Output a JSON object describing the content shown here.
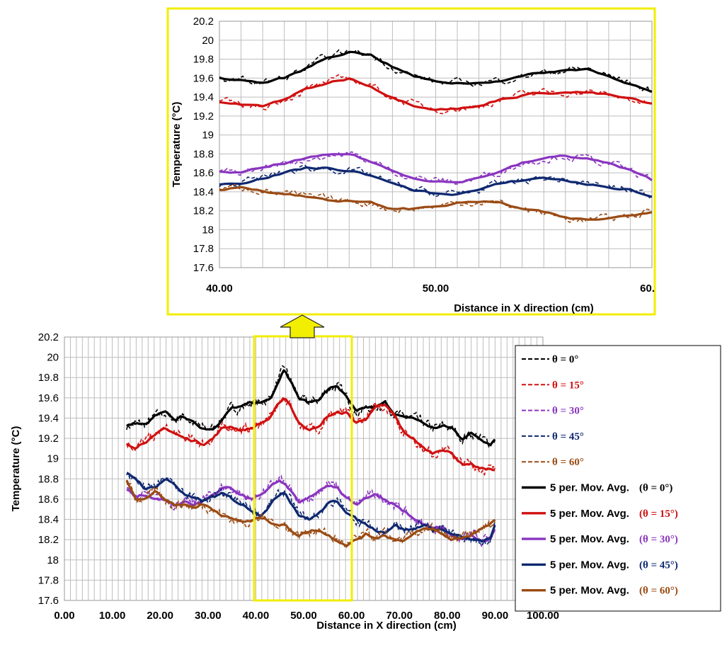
{
  "chart_data": [
    {
      "id": "main",
      "type": "line",
      "xlabel": "Distance in X direction (cm)",
      "ylabel": "Temperature (°C)",
      "xlim": [
        0,
        100
      ],
      "ylim": [
        17.6,
        20.2
      ],
      "xticks": [
        "0.00",
        "10.00",
        "20.00",
        "30.00",
        "40.00",
        "50.00",
        "60.00",
        "70.00",
        "80.00",
        "90.00",
        "100.00"
      ],
      "yticks": [
        "17.6",
        "17.8",
        "18",
        "18.2",
        "18.4",
        "18.6",
        "18.8",
        "19",
        "19.2",
        "19.4",
        "19.6",
        "19.8",
        "20",
        "20.2"
      ],
      "grid": true,
      "legend_position": "right",
      "legend": [
        {
          "name": "θ = 0°",
          "style": "dashed",
          "color": "#000000"
        },
        {
          "name": "θ = 15°",
          "style": "dashed",
          "color": "#d01010"
        },
        {
          "name": "θ = 30°",
          "style": "dashed",
          "color": "#8a35c0"
        },
        {
          "name": "θ = 45°",
          "style": "dashed",
          "color": "#0f2870"
        },
        {
          "name": "θ = 60°",
          "style": "dashed",
          "color": "#9a4b14"
        },
        {
          "name": "5 per. Mov. Avg.",
          "suffix": "(θ = 0°)",
          "style": "solid",
          "color": "#000000"
        },
        {
          "name": "5 per. Mov. Avg.",
          "suffix": "(θ = 15°)",
          "style": "solid",
          "color": "#d01010"
        },
        {
          "name": "5 per. Mov. Avg.",
          "suffix": "(θ = 30°)",
          "style": "solid",
          "color": "#8a35c0"
        },
        {
          "name": "5 per. Mov. Avg.",
          "suffix": "(θ = 45°)",
          "style": "solid",
          "color": "#0f2870"
        },
        {
          "name": "5 per. Mov. Avg.",
          "suffix": "(θ = 60°)",
          "style": "solid",
          "color": "#9a4b14"
        }
      ],
      "series": [
        {
          "angle": 0,
          "color": "#000000",
          "x": [
            13,
            15,
            17,
            19,
            21,
            23,
            25,
            27,
            29,
            31,
            33,
            35,
            37,
            39,
            41,
            43,
            45,
            46,
            47,
            49,
            51,
            53,
            55,
            57,
            59,
            61,
            63,
            65,
            67,
            69,
            71,
            73,
            75,
            77,
            79,
            81,
            83,
            85,
            87,
            89,
            90
          ],
          "y": [
            19.32,
            19.35,
            19.33,
            19.42,
            19.45,
            19.38,
            19.42,
            19.35,
            19.3,
            19.3,
            19.4,
            19.5,
            19.5,
            19.55,
            19.55,
            19.6,
            19.8,
            19.9,
            19.8,
            19.6,
            19.55,
            19.58,
            19.68,
            19.72,
            19.6,
            19.45,
            19.5,
            19.5,
            19.55,
            19.45,
            19.4,
            19.4,
            19.35,
            19.3,
            19.32,
            19.3,
            19.2,
            19.25,
            19.2,
            19.15,
            19.2
          ]
        },
        {
          "angle": 15,
          "color": "#d01010",
          "x": [
            13,
            15,
            17,
            19,
            21,
            23,
            25,
            27,
            29,
            31,
            33,
            35,
            37,
            39,
            41,
            43,
            45,
            46,
            47,
            49,
            51,
            53,
            55,
            57,
            59,
            61,
            63,
            65,
            67,
            69,
            71,
            73,
            75,
            77,
            79,
            81,
            83,
            85,
            87,
            89,
            90
          ],
          "y": [
            19.15,
            19.12,
            19.18,
            19.22,
            19.3,
            19.25,
            19.2,
            19.18,
            19.15,
            19.2,
            19.3,
            19.32,
            19.28,
            19.3,
            19.35,
            19.4,
            19.55,
            19.6,
            19.55,
            19.35,
            19.3,
            19.3,
            19.42,
            19.45,
            19.45,
            19.35,
            19.4,
            19.5,
            19.52,
            19.42,
            19.25,
            19.2,
            19.1,
            19.05,
            19.1,
            19.05,
            18.95,
            18.95,
            18.9,
            18.9,
            18.88
          ]
        },
        {
          "angle": 30,
          "color": "#8a35c0",
          "x": [
            13,
            15,
            17,
            19,
            21,
            23,
            25,
            27,
            29,
            31,
            33,
            35,
            37,
            39,
            41,
            43,
            45,
            46,
            47,
            49,
            51,
            53,
            55,
            57,
            59,
            61,
            63,
            65,
            67,
            69,
            71,
            73,
            75,
            77,
            79,
            81,
            83,
            85,
            87,
            89,
            90
          ],
          "y": [
            18.7,
            18.62,
            18.65,
            18.6,
            18.6,
            18.55,
            18.58,
            18.55,
            18.6,
            18.65,
            18.72,
            18.7,
            18.65,
            18.6,
            18.65,
            18.72,
            18.8,
            18.75,
            18.7,
            18.55,
            18.6,
            18.68,
            18.75,
            18.72,
            18.6,
            18.55,
            18.62,
            18.65,
            18.6,
            18.55,
            18.48,
            18.4,
            18.35,
            18.3,
            18.32,
            18.22,
            18.2,
            18.25,
            18.2,
            18.2,
            18.3
          ]
        },
        {
          "angle": 45,
          "color": "#0f2870",
          "x": [
            13,
            15,
            17,
            19,
            21,
            23,
            25,
            27,
            29,
            31,
            33,
            35,
            37,
            39,
            41,
            43,
            45,
            46,
            47,
            49,
            51,
            53,
            55,
            57,
            59,
            61,
            63,
            65,
            67,
            69,
            71,
            73,
            75,
            77,
            79,
            81,
            83,
            85,
            87,
            89,
            90
          ],
          "y": [
            18.85,
            18.8,
            18.7,
            18.72,
            18.8,
            18.75,
            18.65,
            18.6,
            18.58,
            18.62,
            18.65,
            18.6,
            18.55,
            18.5,
            18.45,
            18.55,
            18.65,
            18.68,
            18.6,
            18.45,
            18.4,
            18.45,
            18.55,
            18.58,
            18.48,
            18.4,
            18.35,
            18.3,
            18.28,
            18.35,
            18.3,
            18.3,
            18.35,
            18.3,
            18.3,
            18.25,
            18.22,
            18.2,
            18.18,
            18.2,
            18.35
          ]
        },
        {
          "angle": 60,
          "color": "#9a4b14",
          "x": [
            13,
            15,
            17,
            19,
            21,
            23,
            25,
            27,
            29,
            31,
            33,
            35,
            37,
            39,
            41,
            43,
            45,
            46,
            47,
            49,
            51,
            53,
            55,
            57,
            59,
            61,
            63,
            65,
            67,
            69,
            71,
            73,
            75,
            77,
            79,
            81,
            83,
            85,
            87,
            89,
            90
          ],
          "y": [
            18.78,
            18.6,
            18.62,
            18.68,
            18.6,
            18.55,
            18.55,
            18.52,
            18.55,
            18.5,
            18.45,
            18.4,
            18.38,
            18.38,
            18.42,
            18.38,
            18.35,
            18.35,
            18.3,
            18.25,
            18.28,
            18.3,
            18.25,
            18.2,
            18.15,
            18.2,
            18.25,
            18.22,
            18.25,
            18.2,
            18.2,
            18.25,
            18.3,
            18.3,
            18.25,
            18.2,
            18.22,
            18.25,
            18.3,
            18.35,
            18.38
          ]
        }
      ]
    },
    {
      "id": "zoom",
      "type": "line",
      "xlabel": "Distance in X direction (cm)",
      "ylabel": "Temperature (°C)",
      "xlim": [
        40,
        60
      ],
      "ylim": [
        17.6,
        20.2
      ],
      "xticks": [
        "40.00",
        "50.00",
        "60."
      ],
      "yticks": [
        "17.6",
        "17.8",
        "18",
        "18.2",
        "18.4",
        "18.6",
        "18.8",
        "19",
        "19.2",
        "19.4",
        "19.6",
        "19.8",
        "20",
        "20.2"
      ],
      "grid": true,
      "series": [
        {
          "angle": 0,
          "color": "#000000",
          "x": [
            40,
            41,
            42,
            43,
            44,
            45,
            46,
            47,
            48,
            49,
            50,
            51,
            52,
            53,
            54,
            55,
            56,
            57,
            58,
            59,
            60
          ],
          "y": [
            19.6,
            19.58,
            19.55,
            19.6,
            19.7,
            19.82,
            19.88,
            19.85,
            19.72,
            19.62,
            19.56,
            19.55,
            19.55,
            19.58,
            19.62,
            19.66,
            19.68,
            19.7,
            19.62,
            19.55,
            19.45
          ]
        },
        {
          "angle": 15,
          "color": "#d01010",
          "x": [
            40,
            41,
            42,
            43,
            44,
            45,
            46,
            47,
            48,
            49,
            50,
            51,
            52,
            53,
            54,
            55,
            56,
            57,
            58,
            59,
            60
          ],
          "y": [
            19.35,
            19.32,
            19.3,
            19.38,
            19.48,
            19.55,
            19.6,
            19.52,
            19.4,
            19.32,
            19.28,
            19.28,
            19.3,
            19.38,
            19.42,
            19.45,
            19.45,
            19.45,
            19.42,
            19.38,
            19.32
          ]
        },
        {
          "angle": 30,
          "color": "#8a35c0",
          "x": [
            40,
            41,
            42,
            43,
            44,
            45,
            46,
            47,
            48,
            49,
            50,
            51,
            52,
            53,
            54,
            55,
            56,
            57,
            58,
            59,
            60
          ],
          "y": [
            18.62,
            18.6,
            18.65,
            18.7,
            18.75,
            18.78,
            18.8,
            18.72,
            18.62,
            18.55,
            18.52,
            18.5,
            18.55,
            18.62,
            18.7,
            18.75,
            18.78,
            18.75,
            18.7,
            18.62,
            18.52
          ]
        },
        {
          "angle": 45,
          "color": "#0f2870",
          "x": [
            40,
            41,
            42,
            43,
            44,
            45,
            46,
            47,
            48,
            49,
            50,
            51,
            52,
            53,
            54,
            55,
            56,
            57,
            58,
            59,
            60
          ],
          "y": [
            18.48,
            18.5,
            18.55,
            18.6,
            18.65,
            18.65,
            18.62,
            18.58,
            18.48,
            18.42,
            18.38,
            18.38,
            18.42,
            18.48,
            18.52,
            18.55,
            18.52,
            18.48,
            18.45,
            18.42,
            18.35
          ]
        },
        {
          "angle": 60,
          "color": "#9a4b14",
          "x": [
            40,
            41,
            42,
            43,
            44,
            45,
            46,
            47,
            48,
            49,
            50,
            51,
            52,
            53,
            54,
            55,
            56,
            57,
            58,
            59,
            60
          ],
          "y": [
            18.42,
            18.45,
            18.42,
            18.38,
            18.35,
            18.32,
            18.3,
            18.28,
            18.22,
            18.22,
            18.25,
            18.28,
            18.3,
            18.28,
            18.22,
            18.18,
            18.12,
            18.1,
            18.12,
            18.15,
            18.2
          ]
        }
      ]
    }
  ]
}
